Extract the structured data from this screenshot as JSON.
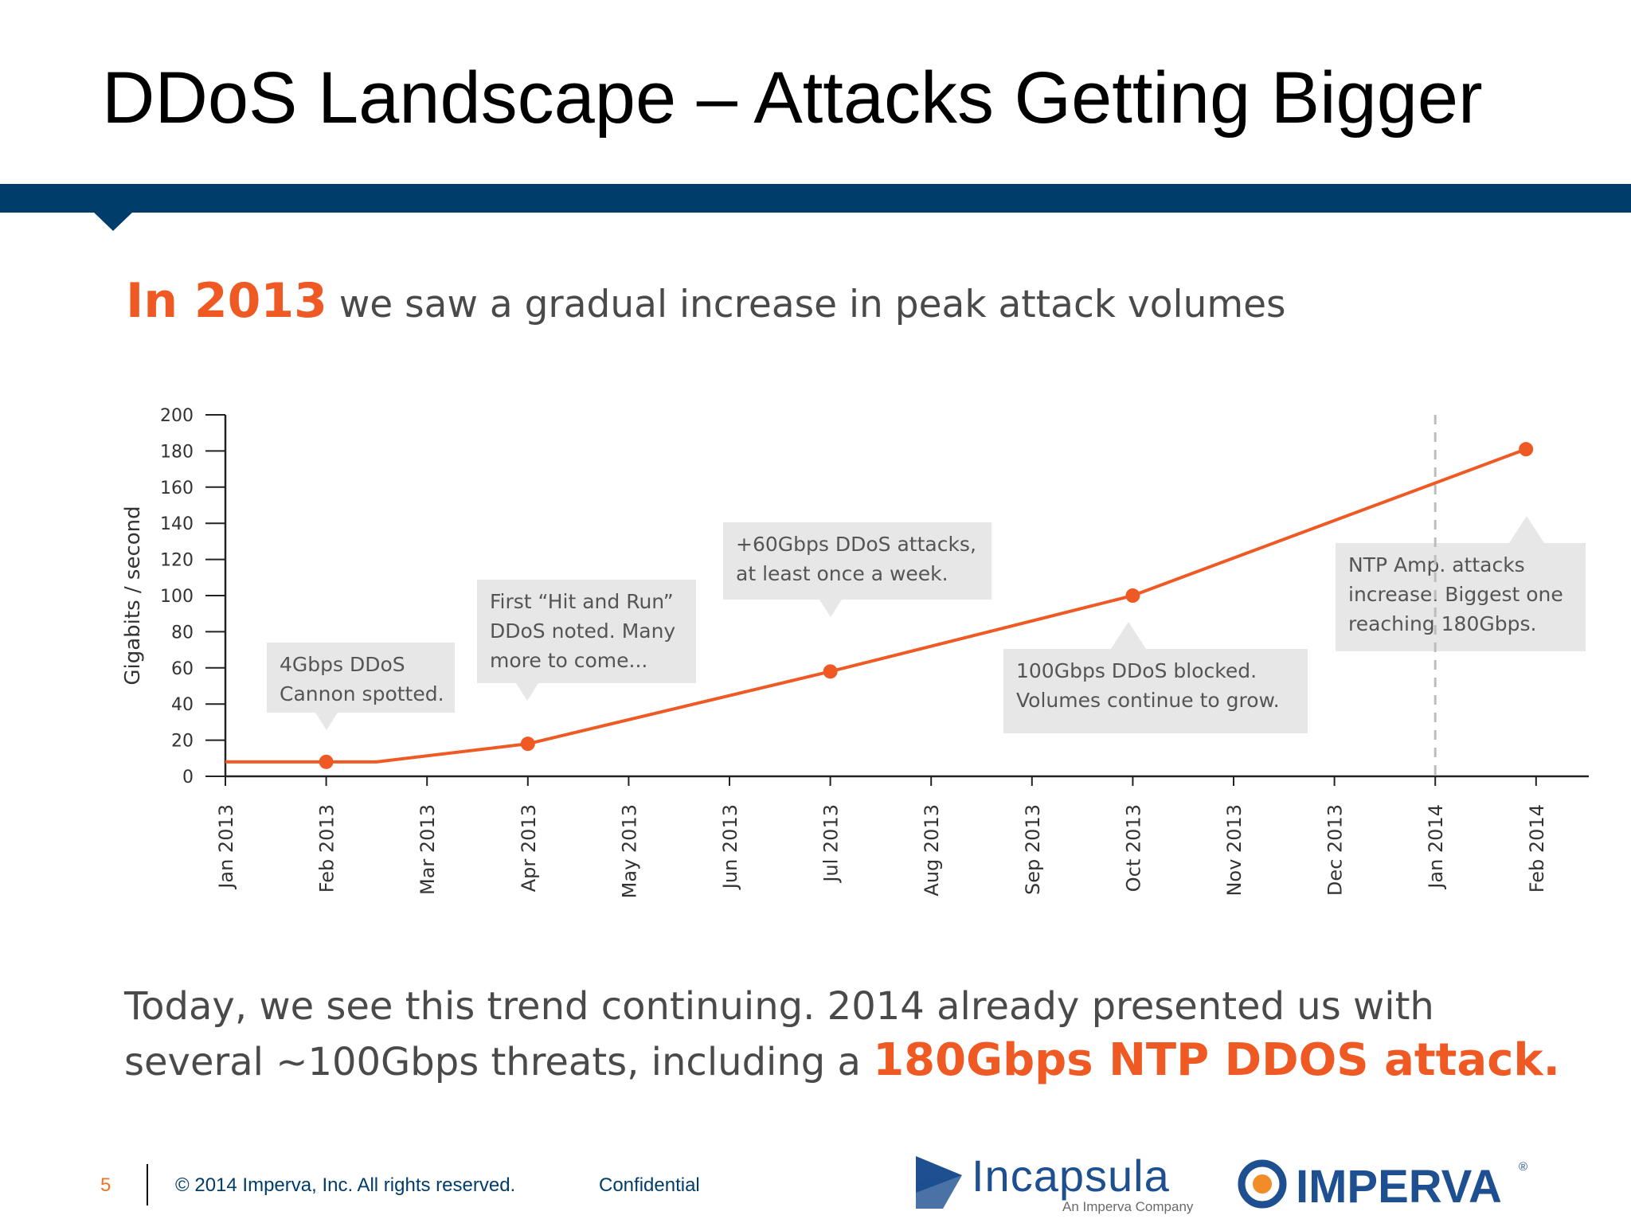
{
  "slide": {
    "title": "DDoS Landscape – Attacks Getting Bigger",
    "headline_year": "In 2013",
    "headline_rest": " we saw a gradual increase in peak attack volumes",
    "bottom_part1": "Today, we see this trend continuing.  2014 already presented us with several ~100Gbps threats, including a ",
    "bottom_highlight": "180Gbps NTP DDOS attack.",
    "accent_color": "#ef5a24",
    "bar_color": "#003d6b"
  },
  "chart_data": {
    "type": "line",
    "ylabel": "Gigabits / second",
    "ylim": [
      0,
      200
    ],
    "yticks": [
      0,
      20,
      40,
      60,
      80,
      100,
      120,
      140,
      160,
      180,
      200
    ],
    "categories": [
      "Jan 2013",
      "Feb 2013",
      "Mar 2013",
      "Apr 2013",
      "May 2013",
      "Jun 2013",
      "Jul 2013",
      "Aug 2013",
      "Sep 2013",
      "Oct 2013",
      "Nov 2013",
      "Dec 2013",
      "Jan 2014",
      "Feb 2014"
    ],
    "series": [
      {
        "color": "#ef5a24",
        "points": [
          {
            "x": 0,
            "y": 8
          },
          {
            "x": 1,
            "y": 8,
            "marker": true
          },
          {
            "x": 1.5,
            "y": 8
          },
          {
            "x": 3,
            "y": 18,
            "marker": true
          },
          {
            "x": 6,
            "y": 58,
            "marker": true
          },
          {
            "x": 9,
            "y": 100,
            "marker": true
          },
          {
            "x": 12.9,
            "y": 181,
            "marker": true
          }
        ]
      }
    ],
    "vline_at": "Jan 2014",
    "grid": false,
    "annotations": [
      {
        "lines": [
          "4Gbps DDoS",
          "Cannon spotted."
        ]
      },
      {
        "lines": [
          "First “Hit and Run”",
          "DDoS noted.  Many",
          "more to come..."
        ]
      },
      {
        "lines": [
          "+60Gbps DDoS attacks,",
          "at least once a week."
        ]
      },
      {
        "lines": [
          "100Gbps DDoS blocked.",
          "Volumes continue to grow."
        ]
      },
      {
        "lines": [
          "NTP Amp. attacks",
          "increase. Biggest one",
          "reaching 180Gbps."
        ]
      }
    ]
  },
  "footer": {
    "page_number": "5",
    "copyright": "© 2014 Imperva, Inc. All rights reserved.",
    "confidential": "Confidential",
    "incapsula_name": "Incapsula",
    "incapsula_sub": "An Imperva Company",
    "imperva_name": "IMPERVA",
    "imperva_reg": "®",
    "incapsula_icon": "incapsula-arrow-icon",
    "imperva_icon": "imperva-ring-icon"
  }
}
